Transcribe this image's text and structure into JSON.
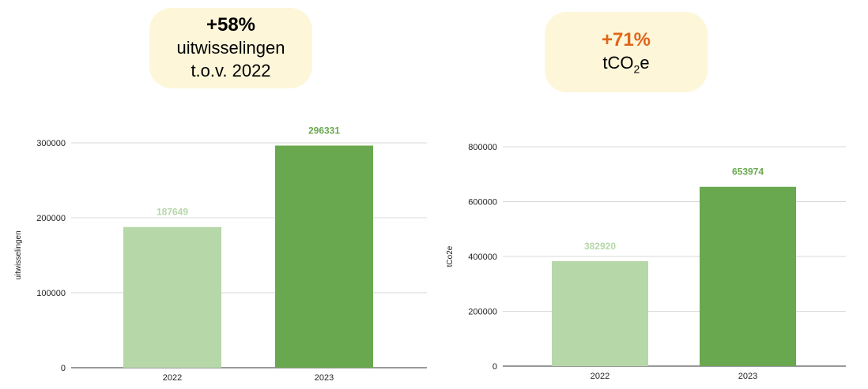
{
  "callouts": [
    {
      "percent": "+58%",
      "percent_color": "#000000",
      "line1": "uitwisselingen",
      "line2": "t.o.v. 2022"
    },
    {
      "percent": "+71%",
      "percent_color": "#e06519",
      "unit_pre": "tCO",
      "unit_sub": "2",
      "unit_post": "e"
    }
  ],
  "colors": {
    "light_bar": "#b6d7a8",
    "dark_bar": "#6aa84f",
    "grid": "#d9d9d9",
    "axis": "#333333",
    "callout_bg": "#fdf6d9"
  },
  "chart_data": [
    {
      "type": "bar",
      "categories": [
        "2022",
        "2023"
      ],
      "values": [
        187649,
        296331
      ],
      "data_labels": [
        "187649",
        "296331"
      ],
      "ylabel": "uitwisselingen",
      "ylim": [
        0,
        300000
      ],
      "yticks": [
        0,
        100000,
        200000,
        300000
      ],
      "ytick_labels": [
        "0",
        "100000",
        "200000",
        "300000"
      ],
      "grid": true
    },
    {
      "type": "bar",
      "categories": [
        "2022",
        "2023"
      ],
      "values": [
        382920,
        653974
      ],
      "data_labels": [
        "382920",
        "653974"
      ],
      "ylabel": "tCo2e",
      "ylim": [
        0,
        800000
      ],
      "yticks": [
        0,
        200000,
        400000,
        600000,
        800000
      ],
      "ytick_labels": [
        "0",
        "200000",
        "400000",
        "600000",
        "800000"
      ],
      "grid": true
    }
  ]
}
